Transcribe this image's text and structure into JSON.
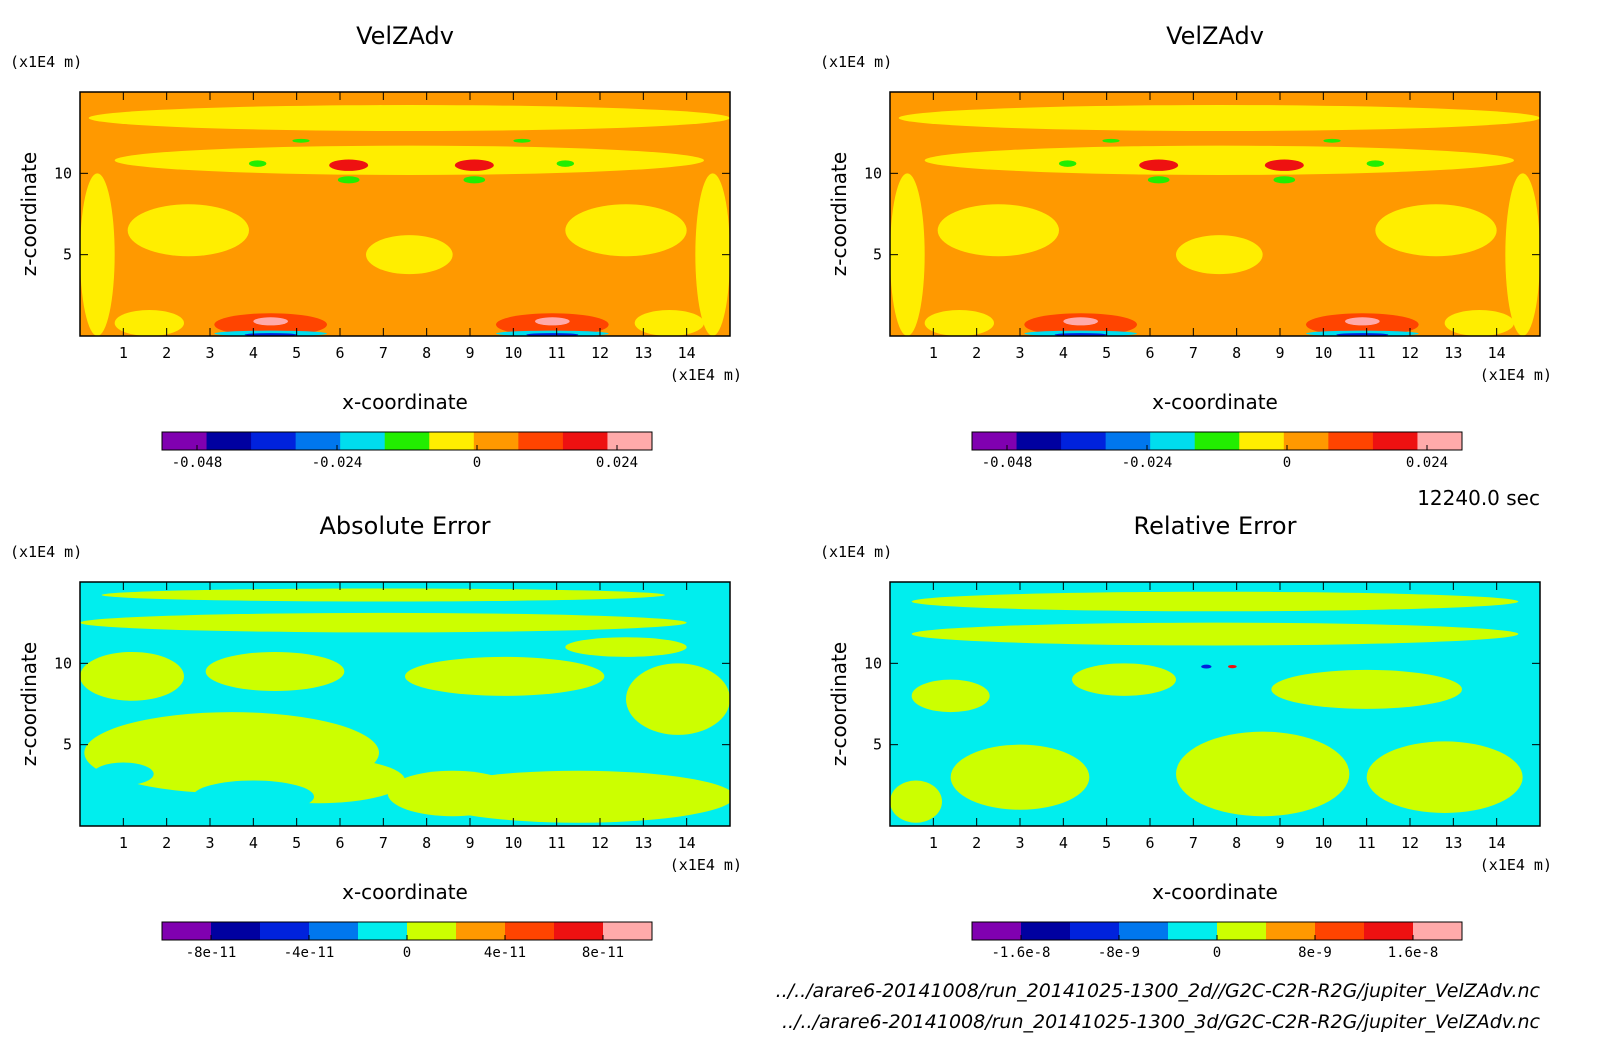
{
  "time_label": "12240.0 sec",
  "file_paths": [
    "../../arare6-20141008/run_20141025-1300_2d//G2C-C2R-R2G/jupiter_VelZAdv.nc",
    "../../arare6-20141008/run_20141025-1300_3d/G2C-C2R-R2G/jupiter_VelZAdv.nc"
  ],
  "chart_data": [
    {
      "type": "heatmap",
      "title": "VelZAdv",
      "xlabel": "x-coordinate",
      "ylabel": "z-coordinate",
      "x_unit": "(x1E4 m)",
      "y_unit": "(x1E4 m)",
      "xlim": [
        0,
        15
      ],
      "ylim": [
        0,
        15
      ],
      "x_ticks": [
        1,
        2,
        3,
        4,
        5,
        6,
        7,
        8,
        9,
        10,
        11,
        12,
        13,
        14
      ],
      "y_ticks": [
        5,
        10
      ],
      "background_color": "#ff9900",
      "colorbar": {
        "colors": [
          "#8000b0",
          "#0000a0",
          "#0022dd",
          "#0077ee",
          "#00ddee",
          "#22ee00",
          "#ffee00",
          "#ff9900",
          "#ff4400",
          "#ee1111",
          "#ffaaaa"
        ],
        "tick_labels": [
          "-0.048",
          "-0.024",
          "0",
          "0.024"
        ],
        "tick_values": [
          -0.048,
          -0.024,
          0,
          0.024
        ],
        "range": [
          -0.054,
          0.03
        ]
      },
      "regions": [
        {
          "color": "#ffee00",
          "x": 2.5,
          "y": 6.5,
          "rx": 1.4,
          "ry": 1.6
        },
        {
          "color": "#ffee00",
          "x": 7.6,
          "y": 5.0,
          "rx": 1.0,
          "ry": 1.2
        },
        {
          "color": "#ffee00",
          "x": 12.6,
          "y": 6.5,
          "rx": 1.4,
          "ry": 1.6
        },
        {
          "color": "#ffee00",
          "x": 0.4,
          "y": 5.0,
          "rx": 0.4,
          "ry": 5.0
        },
        {
          "color": "#ffee00",
          "x": 14.6,
          "y": 5.0,
          "rx": 0.4,
          "ry": 5.0
        },
        {
          "color": "#ffee00",
          "x": 7.6,
          "y": 10.8,
          "rx": 6.8,
          "ry": 0.9
        },
        {
          "color": "#ffee00",
          "x": 7.6,
          "y": 13.4,
          "rx": 7.4,
          "ry": 0.8
        },
        {
          "color": "#ffee00",
          "x": 1.6,
          "y": 0.8,
          "rx": 0.8,
          "ry": 0.8
        },
        {
          "color": "#ffee00",
          "x": 13.6,
          "y": 0.8,
          "rx": 0.8,
          "ry": 0.8
        },
        {
          "color": "#ff4400",
          "x": 4.4,
          "y": 0.7,
          "rx": 1.3,
          "ry": 0.7
        },
        {
          "color": "#ff4400",
          "x": 10.9,
          "y": 0.7,
          "rx": 1.3,
          "ry": 0.7
        },
        {
          "color": "#ffaaaa",
          "x": 4.4,
          "y": 0.9,
          "rx": 0.4,
          "ry": 0.25
        },
        {
          "color": "#ffaaaa",
          "x": 10.9,
          "y": 0.9,
          "rx": 0.4,
          "ry": 0.25
        },
        {
          "color": "#00ddee",
          "x": 4.4,
          "y": 0.15,
          "rx": 1.3,
          "ry": 0.18
        },
        {
          "color": "#0022dd",
          "x": 4.4,
          "y": 0.08,
          "rx": 0.6,
          "ry": 0.1
        },
        {
          "color": "#00ddee",
          "x": 10.9,
          "y": 0.15,
          "rx": 1.3,
          "ry": 0.18
        },
        {
          "color": "#0022dd",
          "x": 10.9,
          "y": 0.08,
          "rx": 0.6,
          "ry": 0.1
        },
        {
          "color": "#ee1111",
          "x": 6.2,
          "y": 10.5,
          "rx": 0.45,
          "ry": 0.35
        },
        {
          "color": "#ee1111",
          "x": 9.1,
          "y": 10.5,
          "rx": 0.45,
          "ry": 0.35
        },
        {
          "color": "#22ee00",
          "x": 6.2,
          "y": 9.6,
          "rx": 0.25,
          "ry": 0.22
        },
        {
          "color": "#22ee00",
          "x": 9.1,
          "y": 9.6,
          "rx": 0.25,
          "ry": 0.22
        },
        {
          "color": "#22ee00",
          "x": 4.1,
          "y": 10.6,
          "rx": 0.2,
          "ry": 0.2
        },
        {
          "color": "#22ee00",
          "x": 11.2,
          "y": 10.6,
          "rx": 0.2,
          "ry": 0.2
        },
        {
          "color": "#22ee00",
          "x": 5.1,
          "y": 12.0,
          "rx": 0.2,
          "ry": 0.12
        },
        {
          "color": "#22ee00",
          "x": 10.2,
          "y": 12.0,
          "rx": 0.2,
          "ry": 0.12
        }
      ]
    },
    {
      "type": "heatmap",
      "title": "VelZAdv",
      "xlabel": "x-coordinate",
      "ylabel": "z-coordinate",
      "x_unit": "(x1E4 m)",
      "y_unit": "(x1E4 m)",
      "xlim": [
        0,
        15
      ],
      "ylim": [
        0,
        15
      ],
      "x_ticks": [
        1,
        2,
        3,
        4,
        5,
        6,
        7,
        8,
        9,
        10,
        11,
        12,
        13,
        14
      ],
      "y_ticks": [
        5,
        10
      ],
      "background_color": "#ff9900",
      "colorbar": {
        "colors": [
          "#8000b0",
          "#0000a0",
          "#0022dd",
          "#0077ee",
          "#00ddee",
          "#22ee00",
          "#ffee00",
          "#ff9900",
          "#ff4400",
          "#ee1111",
          "#ffaaaa"
        ],
        "tick_labels": [
          "-0.048",
          "-0.024",
          "0",
          "0.024"
        ],
        "tick_values": [
          -0.048,
          -0.024,
          0,
          0.024
        ],
        "range": [
          -0.054,
          0.03
        ]
      },
      "regions": [
        {
          "color": "#ffee00",
          "x": 2.5,
          "y": 6.5,
          "rx": 1.4,
          "ry": 1.6
        },
        {
          "color": "#ffee00",
          "x": 7.6,
          "y": 5.0,
          "rx": 1.0,
          "ry": 1.2
        },
        {
          "color": "#ffee00",
          "x": 12.6,
          "y": 6.5,
          "rx": 1.4,
          "ry": 1.6
        },
        {
          "color": "#ffee00",
          "x": 0.4,
          "y": 5.0,
          "rx": 0.4,
          "ry": 5.0
        },
        {
          "color": "#ffee00",
          "x": 14.6,
          "y": 5.0,
          "rx": 0.4,
          "ry": 5.0
        },
        {
          "color": "#ffee00",
          "x": 7.6,
          "y": 10.8,
          "rx": 6.8,
          "ry": 0.9
        },
        {
          "color": "#ffee00",
          "x": 7.6,
          "y": 13.4,
          "rx": 7.4,
          "ry": 0.8
        },
        {
          "color": "#ffee00",
          "x": 1.6,
          "y": 0.8,
          "rx": 0.8,
          "ry": 0.8
        },
        {
          "color": "#ffee00",
          "x": 13.6,
          "y": 0.8,
          "rx": 0.8,
          "ry": 0.8
        },
        {
          "color": "#ff4400",
          "x": 4.4,
          "y": 0.7,
          "rx": 1.3,
          "ry": 0.7
        },
        {
          "color": "#ff4400",
          "x": 10.9,
          "y": 0.7,
          "rx": 1.3,
          "ry": 0.7
        },
        {
          "color": "#ffaaaa",
          "x": 4.4,
          "y": 0.9,
          "rx": 0.4,
          "ry": 0.25
        },
        {
          "color": "#ffaaaa",
          "x": 10.9,
          "y": 0.9,
          "rx": 0.4,
          "ry": 0.25
        },
        {
          "color": "#00ddee",
          "x": 4.4,
          "y": 0.15,
          "rx": 1.3,
          "ry": 0.18
        },
        {
          "color": "#0022dd",
          "x": 4.4,
          "y": 0.08,
          "rx": 0.6,
          "ry": 0.1
        },
        {
          "color": "#00ddee",
          "x": 10.9,
          "y": 0.15,
          "rx": 1.3,
          "ry": 0.18
        },
        {
          "color": "#0022dd",
          "x": 10.9,
          "y": 0.08,
          "rx": 0.6,
          "ry": 0.1
        },
        {
          "color": "#ee1111",
          "x": 6.2,
          "y": 10.5,
          "rx": 0.45,
          "ry": 0.35
        },
        {
          "color": "#ee1111",
          "x": 9.1,
          "y": 10.5,
          "rx": 0.45,
          "ry": 0.35
        },
        {
          "color": "#22ee00",
          "x": 6.2,
          "y": 9.6,
          "rx": 0.25,
          "ry": 0.22
        },
        {
          "color": "#22ee00",
          "x": 9.1,
          "y": 9.6,
          "rx": 0.25,
          "ry": 0.22
        },
        {
          "color": "#22ee00",
          "x": 4.1,
          "y": 10.6,
          "rx": 0.2,
          "ry": 0.2
        },
        {
          "color": "#22ee00",
          "x": 11.2,
          "y": 10.6,
          "rx": 0.2,
          "ry": 0.2
        },
        {
          "color": "#22ee00",
          "x": 5.1,
          "y": 12.0,
          "rx": 0.2,
          "ry": 0.12
        },
        {
          "color": "#22ee00",
          "x": 10.2,
          "y": 12.0,
          "rx": 0.2,
          "ry": 0.12
        }
      ]
    },
    {
      "type": "heatmap",
      "title": "Absolute Error",
      "xlabel": "x-coordinate",
      "ylabel": "z-coordinate",
      "x_unit": "(x1E4 m)",
      "y_unit": "(x1E4 m)",
      "xlim": [
        0,
        15
      ],
      "ylim": [
        0,
        15
      ],
      "x_ticks": [
        1,
        2,
        3,
        4,
        5,
        6,
        7,
        8,
        9,
        10,
        11,
        12,
        13,
        14
      ],
      "y_ticks": [
        5,
        10
      ],
      "background_color": "#00eeee",
      "colorbar": {
        "colors": [
          "#8000b0",
          "#0000a0",
          "#0022dd",
          "#0077ee",
          "#00eeee",
          "#ccff00",
          "#ff9900",
          "#ff4400",
          "#ee1111",
          "#ffaaaa"
        ],
        "tick_labels": [
          "-8e-11",
          "-4e-11",
          "0",
          "4e-11",
          "8e-11"
        ],
        "tick_values": [
          -8e-11,
          -4e-11,
          0,
          4e-11,
          8e-11
        ],
        "range": [
          -1e-10,
          1e-10
        ]
      },
      "regions": [
        {
          "color": "#ccff00",
          "x": 3.5,
          "y": 4.5,
          "rx": 3.4,
          "ry": 2.5
        },
        {
          "color": "#ccff00",
          "x": 5.5,
          "y": 2.8,
          "rx": 2.0,
          "ry": 1.4
        },
        {
          "color": "#ccff00",
          "x": 11.5,
          "y": 1.8,
          "rx": 3.6,
          "ry": 1.6
        },
        {
          "color": "#ccff00",
          "x": 8.6,
          "y": 2.0,
          "rx": 1.5,
          "ry": 1.4
        },
        {
          "color": "#ccff00",
          "x": 1.2,
          "y": 9.2,
          "rx": 1.2,
          "ry": 1.5
        },
        {
          "color": "#ccff00",
          "x": 4.5,
          "y": 9.5,
          "rx": 1.6,
          "ry": 1.2
        },
        {
          "color": "#ccff00",
          "x": 13.8,
          "y": 7.8,
          "rx": 1.2,
          "ry": 2.2
        },
        {
          "color": "#ccff00",
          "x": 9.8,
          "y": 9.2,
          "rx": 2.3,
          "ry": 1.2
        },
        {
          "color": "#ccff00",
          "x": 7.0,
          "y": 12.5,
          "rx": 7.0,
          "ry": 0.6
        },
        {
          "color": "#ccff00",
          "x": 7.0,
          "y": 14.2,
          "rx": 6.5,
          "ry": 0.4
        },
        {
          "color": "#ccff00",
          "x": 12.6,
          "y": 11.0,
          "rx": 1.4,
          "ry": 0.6
        },
        {
          "color": "#00eeee",
          "x": 4.0,
          "y": 1.8,
          "rx": 1.4,
          "ry": 1.0
        },
        {
          "color": "#00eeee",
          "x": 1.0,
          "y": 3.2,
          "rx": 0.7,
          "ry": 0.7
        }
      ]
    },
    {
      "type": "heatmap",
      "title": "Relative Error",
      "xlabel": "x-coordinate",
      "ylabel": "z-coordinate",
      "x_unit": "(x1E4 m)",
      "y_unit": "(x1E4 m)",
      "xlim": [
        0,
        15
      ],
      "ylim": [
        0,
        15
      ],
      "x_ticks": [
        1,
        2,
        3,
        4,
        5,
        6,
        7,
        8,
        9,
        10,
        11,
        12,
        13,
        14
      ],
      "y_ticks": [
        5,
        10
      ],
      "background_color": "#00eeee",
      "colorbar": {
        "colors": [
          "#8000b0",
          "#0000a0",
          "#0022dd",
          "#0077ee",
          "#00eeee",
          "#ccff00",
          "#ff9900",
          "#ff4400",
          "#ee1111",
          "#ffaaaa"
        ],
        "tick_labels": [
          "-1.6e-8",
          "-8e-9",
          "0",
          "8e-9",
          "1.6e-8"
        ],
        "tick_values": [
          -1.6e-08,
          -8e-09,
          0,
          8e-09,
          1.6e-08
        ],
        "range": [
          -2e-08,
          2e-08
        ]
      },
      "regions": [
        {
          "color": "#ccff00",
          "x": 3.0,
          "y": 3.0,
          "rx": 1.6,
          "ry": 2.0
        },
        {
          "color": "#ccff00",
          "x": 8.6,
          "y": 3.2,
          "rx": 2.0,
          "ry": 2.6
        },
        {
          "color": "#ccff00",
          "x": 12.8,
          "y": 3.0,
          "rx": 1.8,
          "ry": 2.2
        },
        {
          "color": "#ccff00",
          "x": 5.4,
          "y": 9.0,
          "rx": 1.2,
          "ry": 1.0
        },
        {
          "color": "#ccff00",
          "x": 11.0,
          "y": 8.4,
          "rx": 2.2,
          "ry": 1.2
        },
        {
          "color": "#ccff00",
          "x": 1.4,
          "y": 8.0,
          "rx": 0.9,
          "ry": 1.0
        },
        {
          "color": "#ccff00",
          "x": 7.5,
          "y": 11.8,
          "rx": 7.0,
          "ry": 0.7
        },
        {
          "color": "#ccff00",
          "x": 7.5,
          "y": 13.8,
          "rx": 7.0,
          "ry": 0.6
        },
        {
          "color": "#ccff00",
          "x": 0.6,
          "y": 1.5,
          "rx": 0.6,
          "ry": 1.3
        },
        {
          "color": "#0022dd",
          "x": 7.3,
          "y": 9.8,
          "rx": 0.12,
          "ry": 0.12
        },
        {
          "color": "#ee1111",
          "x": 7.9,
          "y": 9.8,
          "rx": 0.1,
          "ry": 0.1
        }
      ]
    }
  ]
}
